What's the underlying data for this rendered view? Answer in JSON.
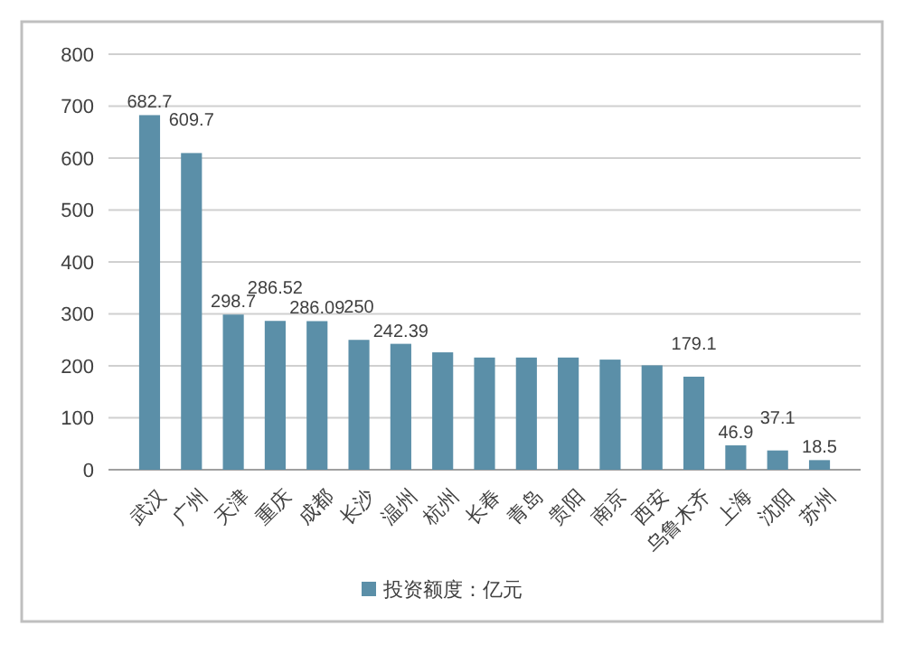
{
  "chart_data": {
    "type": "bar",
    "categories": [
      "武汉",
      "广州",
      "天津",
      "重庆",
      "成都",
      "长沙",
      "温州",
      "杭州",
      "长春",
      "青岛",
      "贵阳",
      "南京",
      "西安",
      "乌鲁木齐",
      "上海",
      "沈阳",
      "苏州"
    ],
    "series": [
      {
        "name": "投资额度：亿元",
        "color": "#5b8fa8",
        "values": [
          682.7,
          609.7,
          298.7,
          286.52,
          286.09,
          250,
          242.39,
          226,
          216,
          216,
          216,
          212,
          201,
          179.1,
          46.9,
          37.1,
          18.5
        ],
        "value_labels": [
          "682.7",
          "609.7",
          "298.7",
          "286.52",
          "286.09",
          "250",
          "242.39",
          null,
          null,
          null,
          null,
          null,
          null,
          "179.1",
          "46.9",
          "37.1",
          "18.5"
        ]
      }
    ],
    "ylim": [
      0,
      800
    ],
    "yticks": [
      0,
      100,
      200,
      300,
      400,
      500,
      600,
      700,
      800
    ],
    "grid": "y",
    "legend": "bottom"
  }
}
